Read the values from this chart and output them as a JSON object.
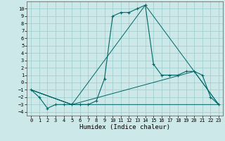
{
  "xlabel": "Humidex (Indice chaleur)",
  "xlim": [
    -0.5,
    23.5
  ],
  "ylim": [
    -4.5,
    11
  ],
  "xticks": [
    0,
    1,
    2,
    3,
    4,
    5,
    6,
    7,
    8,
    9,
    10,
    11,
    12,
    13,
    14,
    15,
    16,
    17,
    18,
    19,
    20,
    21,
    22,
    23
  ],
  "yticks": [
    10,
    9,
    8,
    7,
    6,
    5,
    4,
    3,
    2,
    1,
    0,
    -1,
    -2,
    -3,
    -4
  ],
  "bg_color": "#cce8e8",
  "grid_color": "#99cccc",
  "line_color": "#006666",
  "line1_x": [
    0,
    1,
    2,
    3,
    4,
    5,
    6,
    7,
    8,
    9,
    10,
    11,
    12,
    13,
    14,
    15,
    16,
    17,
    18,
    19,
    20,
    21,
    22,
    23
  ],
  "line1_y": [
    -1,
    -2,
    -3.5,
    -3,
    -3,
    -3,
    -3,
    -3,
    -2.5,
    0.5,
    9,
    9.5,
    9.5,
    10,
    10.5,
    2.5,
    1,
    1,
    1,
    1.5,
    1.5,
    1,
    -2,
    -3
  ],
  "line2_x": [
    0,
    5,
    14,
    23
  ],
  "line2_y": [
    -1,
    -3,
    10.5,
    -3
  ],
  "line3_x": [
    0,
    5,
    20,
    23
  ],
  "line3_y": [
    -1,
    -3,
    1.5,
    -3
  ],
  "line4_x": [
    0,
    5,
    20,
    23
  ],
  "line4_y": [
    -1,
    -3,
    -3,
    -3
  ],
  "font_family": "monospace",
  "tick_fontsize": 5.0,
  "xlabel_fontsize": 6.5
}
